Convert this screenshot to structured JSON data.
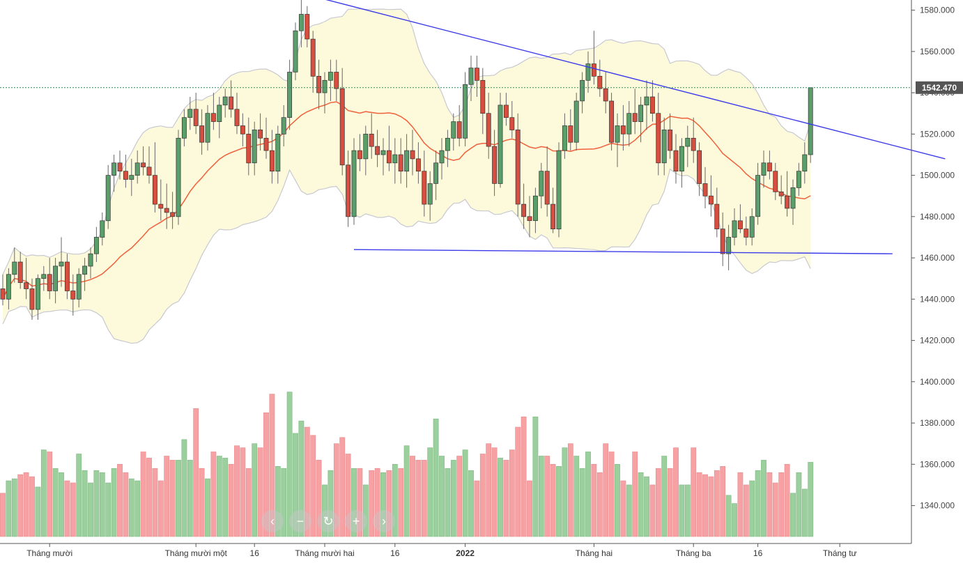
{
  "chart_data": {
    "type": "candlestick",
    "title": "",
    "y_axis": {
      "ylim": [
        1325,
        1590
      ],
      "tick_values": [
        1340,
        1360,
        1380,
        1400,
        1420,
        1440,
        1460,
        1480,
        1500,
        1520,
        1540,
        1560,
        1580
      ],
      "tick_labels": [
        "1340.000",
        "1360.000",
        "1380.000",
        "1400.000",
        "1420.000",
        "1440.000",
        "1460.000",
        "1480.000",
        "1500.000",
        "1520.000",
        "1540.000",
        "1560.000",
        "1580.000"
      ]
    },
    "x_axis_labels": [
      {
        "text": "Tháng mười",
        "index": 8,
        "bold": false
      },
      {
        "text": "Tháng mười một",
        "index": 33,
        "bold": false
      },
      {
        "text": "16",
        "index": 43,
        "bold": false
      },
      {
        "text": "Tháng mười hai",
        "index": 55,
        "bold": false
      },
      {
        "text": "16",
        "index": 67,
        "bold": false
      },
      {
        "text": "2022",
        "index": 79,
        "bold": true
      },
      {
        "text": "Tháng hai",
        "index": 101,
        "bold": false
      },
      {
        "text": "Tháng ba",
        "index": 118,
        "bold": false
      },
      {
        "text": "16",
        "index": 129,
        "bold": false
      },
      {
        "text": "Tháng tư",
        "index": 143,
        "bold": false
      }
    ],
    "last_price": {
      "value": 1542.47,
      "label": "1542.470"
    },
    "candles": [
      [
        1445,
        1452,
        1437,
        1440
      ],
      [
        1440,
        1455,
        1435,
        1452
      ],
      [
        1452,
        1465,
        1448,
        1458
      ],
      [
        1458,
        1463,
        1445,
        1448
      ],
      [
        1448,
        1460,
        1440,
        1445
      ],
      [
        1445,
        1450,
        1430,
        1435
      ],
      [
        1435,
        1452,
        1430,
        1450
      ],
      [
        1450,
        1456,
        1444,
        1452
      ],
      [
        1452,
        1460,
        1440,
        1444
      ],
      [
        1444,
        1460,
        1438,
        1456
      ],
      [
        1456,
        1470,
        1446,
        1458
      ],
      [
        1458,
        1462,
        1440,
        1444
      ],
      [
        1444,
        1452,
        1432,
        1440
      ],
      [
        1440,
        1455,
        1436,
        1452
      ],
      [
        1452,
        1460,
        1444,
        1456
      ],
      [
        1456,
        1465,
        1450,
        1462
      ],
      [
        1462,
        1475,
        1458,
        1470
      ],
      [
        1470,
        1482,
        1466,
        1478
      ],
      [
        1478,
        1505,
        1474,
        1500
      ],
      [
        1500,
        1510,
        1492,
        1506
      ],
      [
        1506,
        1512,
        1498,
        1502
      ],
      [
        1502,
        1510,
        1494,
        1498
      ],
      [
        1498,
        1508,
        1490,
        1500
      ],
      [
        1500,
        1512,
        1496,
        1506
      ],
      [
        1506,
        1514,
        1500,
        1504
      ],
      [
        1504,
        1514,
        1496,
        1500
      ],
      [
        1500,
        1516,
        1482,
        1486
      ],
      [
        1486,
        1498,
        1478,
        1484
      ],
      [
        1484,
        1496,
        1474,
        1482
      ],
      [
        1482,
        1492,
        1474,
        1480
      ],
      [
        1480,
        1522,
        1476,
        1518
      ],
      [
        1518,
        1532,
        1514,
        1528
      ],
      [
        1528,
        1538,
        1522,
        1532
      ],
      [
        1532,
        1540,
        1520,
        1524
      ],
      [
        1524,
        1532,
        1510,
        1516
      ],
      [
        1516,
        1534,
        1512,
        1530
      ],
      [
        1530,
        1540,
        1522,
        1526
      ],
      [
        1526,
        1538,
        1518,
        1534
      ],
      [
        1534,
        1542,
        1528,
        1538
      ],
      [
        1538,
        1546,
        1528,
        1532
      ],
      [
        1532,
        1540,
        1520,
        1524
      ],
      [
        1524,
        1530,
        1514,
        1520
      ],
      [
        1520,
        1528,
        1500,
        1506
      ],
      [
        1506,
        1526,
        1500,
        1522
      ],
      [
        1522,
        1530,
        1512,
        1518
      ],
      [
        1518,
        1528,
        1508,
        1512
      ],
      [
        1512,
        1522,
        1496,
        1502
      ],
      [
        1502,
        1524,
        1496,
        1520
      ],
      [
        1520,
        1534,
        1514,
        1528
      ],
      [
        1528,
        1556,
        1522,
        1550
      ],
      [
        1550,
        1574,
        1546,
        1570
      ],
      [
        1570,
        1585,
        1562,
        1578
      ],
      [
        1578,
        1582,
        1562,
        1566
      ],
      [
        1566,
        1570,
        1540,
        1548
      ],
      [
        1548,
        1556,
        1532,
        1540
      ],
      [
        1540,
        1550,
        1530,
        1546
      ],
      [
        1546,
        1556,
        1536,
        1550
      ],
      [
        1550,
        1556,
        1536,
        1542
      ],
      [
        1542,
        1552,
        1500,
        1505
      ],
      [
        1505,
        1512,
        1475,
        1480
      ],
      [
        1480,
        1518,
        1476,
        1512
      ],
      [
        1512,
        1520,
        1502,
        1508
      ],
      [
        1508,
        1524,
        1500,
        1520
      ],
      [
        1520,
        1530,
        1508,
        1514
      ],
      [
        1514,
        1522,
        1504,
        1510
      ],
      [
        1510,
        1518,
        1500,
        1512
      ],
      [
        1512,
        1524,
        1502,
        1506
      ],
      [
        1506,
        1518,
        1496,
        1510
      ],
      [
        1510,
        1518,
        1496,
        1502
      ],
      [
        1502,
        1520,
        1494,
        1512
      ],
      [
        1512,
        1522,
        1500,
        1508
      ],
      [
        1508,
        1516,
        1496,
        1502
      ],
      [
        1502,
        1512,
        1480,
        1486
      ],
      [
        1486,
        1502,
        1478,
        1496
      ],
      [
        1496,
        1512,
        1488,
        1506
      ],
      [
        1506,
        1518,
        1498,
        1512
      ],
      [
        1512,
        1522,
        1504,
        1518
      ],
      [
        1518,
        1530,
        1512,
        1526
      ],
      [
        1526,
        1534,
        1514,
        1518
      ],
      [
        1518,
        1550,
        1514,
        1544
      ],
      [
        1544,
        1558,
        1536,
        1552
      ],
      [
        1552,
        1558,
        1538,
        1546
      ],
      [
        1546,
        1552,
        1520,
        1530
      ],
      [
        1530,
        1540,
        1508,
        1514
      ],
      [
        1514,
        1522,
        1490,
        1496
      ],
      [
        1496,
        1540,
        1494,
        1534
      ],
      [
        1534,
        1540,
        1524,
        1528
      ],
      [
        1528,
        1536,
        1518,
        1522
      ],
      [
        1522,
        1530,
        1480,
        1486
      ],
      [
        1486,
        1496,
        1474,
        1480
      ],
      [
        1480,
        1490,
        1470,
        1478
      ],
      [
        1478,
        1494,
        1472,
        1490
      ],
      [
        1490,
        1506,
        1484,
        1502
      ],
      [
        1502,
        1514,
        1480,
        1486
      ],
      [
        1486,
        1494,
        1472,
        1474
      ],
      [
        1474,
        1516,
        1470,
        1512
      ],
      [
        1512,
        1530,
        1508,
        1524
      ],
      [
        1524,
        1532,
        1512,
        1516
      ],
      [
        1516,
        1540,
        1512,
        1536
      ],
      [
        1536,
        1550,
        1530,
        1546
      ],
      [
        1546,
        1560,
        1540,
        1554
      ],
      [
        1554,
        1570,
        1544,
        1548
      ],
      [
        1548,
        1556,
        1538,
        1542
      ],
      [
        1542,
        1550,
        1530,
        1536
      ],
      [
        1536,
        1540,
        1512,
        1516
      ],
      [
        1516,
        1530,
        1504,
        1524
      ],
      [
        1524,
        1534,
        1512,
        1520
      ],
      [
        1520,
        1536,
        1514,
        1530
      ],
      [
        1530,
        1542,
        1520,
        1526
      ],
      [
        1526,
        1538,
        1516,
        1534
      ],
      [
        1534,
        1546,
        1522,
        1538
      ],
      [
        1538,
        1546,
        1526,
        1530
      ],
      [
        1530,
        1540,
        1500,
        1506
      ],
      [
        1506,
        1528,
        1500,
        1522
      ],
      [
        1522,
        1530,
        1508,
        1512
      ],
      [
        1512,
        1520,
        1496,
        1502
      ],
      [
        1502,
        1518,
        1494,
        1514
      ],
      [
        1514,
        1524,
        1504,
        1518
      ],
      [
        1518,
        1528,
        1506,
        1512
      ],
      [
        1512,
        1516,
        1490,
        1496
      ],
      [
        1496,
        1504,
        1484,
        1490
      ],
      [
        1490,
        1500,
        1480,
        1486
      ],
      [
        1486,
        1494,
        1470,
        1474
      ],
      [
        1474,
        1482,
        1456,
        1462
      ],
      [
        1462,
        1476,
        1454,
        1470
      ],
      [
        1470,
        1484,
        1466,
        1478
      ],
      [
        1478,
        1486,
        1472,
        1474
      ],
      [
        1474,
        1480,
        1466,
        1470
      ],
      [
        1470,
        1484,
        1466,
        1480
      ],
      [
        1480,
        1506,
        1476,
        1500
      ],
      [
        1500,
        1512,
        1494,
        1506
      ],
      [
        1506,
        1512,
        1498,
        1502
      ],
      [
        1502,
        1506,
        1488,
        1492
      ],
      [
        1492,
        1500,
        1486,
        1490
      ],
      [
        1490,
        1502,
        1480,
        1484
      ],
      [
        1484,
        1498,
        1476,
        1494
      ],
      [
        1494,
        1506,
        1490,
        1502
      ],
      [
        1502,
        1516,
        1496,
        1510
      ],
      [
        1510,
        1542.47,
        1506,
        1542.47
      ]
    ],
    "volumes": [
      1346,
      1352,
      1353,
      1355,
      1356,
      1354,
      1349,
      1367,
      1366,
      1358,
      1356,
      1352,
      1351,
      1365,
      1357,
      1351,
      1357,
      1356,
      1351,
      1358,
      1360,
      1356,
      1353,
      1352,
      1366,
      1363,
      1358,
      1352,
      1364,
      1362,
      1362,
      1372,
      1362,
      1387,
      1358,
      1353,
      1366,
      1364,
      1363,
      1360,
      1369,
      1368,
      1358,
      1370,
      1368,
      1385,
      1394,
      1359,
      1358,
      1395,
      1375,
      1381,
      1378,
      1374,
      1362,
      1350,
      1357,
      1370,
      1373,
      1365,
      1358,
      1358,
      1350,
      1357,
      1358,
      1356,
      1357,
      1360,
      1358,
      1369,
      1364,
      1362,
      1362,
      1368,
      1382,
      1364,
      1358,
      1362,
      1364,
      1367,
      1357,
      1352,
      1365,
      1370,
      1368,
      1363,
      1362,
      1367,
      1378,
      1383,
      1352,
      1383,
      1364,
      1364,
      1360,
      1359,
      1368,
      1370,
      1364,
      1358,
      1366,
      1360,
      1356,
      1370,
      1366,
      1360,
      1352,
      1350,
      1366,
      1356,
      1354,
      1350,
      1358,
      1364,
      1358,
      1368,
      1350,
      1350,
      1368,
      1356,
      1355,
      1354,
      1357,
      1359,
      1345,
      1341,
      1356,
      1350,
      1352,
      1357,
      1362,
      1356,
      1351,
      1356,
      1360,
      1346,
      1356,
      1348,
      1361
    ]
  },
  "indicators": {
    "bollinger_period": 20,
    "bollinger_k": 2,
    "band_fill": "#fdfadc",
    "band_edge": "#c8c8d0",
    "ma_color": "#f0603a"
  },
  "trendlines": [
    {
      "from": {
        "index": 54,
        "value": 1586
      },
      "to": {
        "index": 161,
        "value": 1508
      }
    },
    {
      "from": {
        "index": 60,
        "value": 1464
      },
      "to": {
        "index": 152,
        "value": 1462
      }
    }
  ],
  "colors": {
    "up_body": "#5a9e6b",
    "down_body": "#d64e3f",
    "wick": "#666666",
    "volume_up": "#9ccf9e",
    "volume_down": "#f6a1a3",
    "trendline": "#3b3bea",
    "price_tag": "#555555"
  },
  "navigator": {
    "buttons": [
      {
        "name": "nav-back-button",
        "glyph": "‹"
      },
      {
        "name": "nav-zoom-out-button",
        "glyph": "−"
      },
      {
        "name": "nav-reset-button",
        "glyph": "↻"
      },
      {
        "name": "nav-zoom-in-button",
        "glyph": "+"
      },
      {
        "name": "nav-forward-button",
        "glyph": "›"
      }
    ]
  }
}
